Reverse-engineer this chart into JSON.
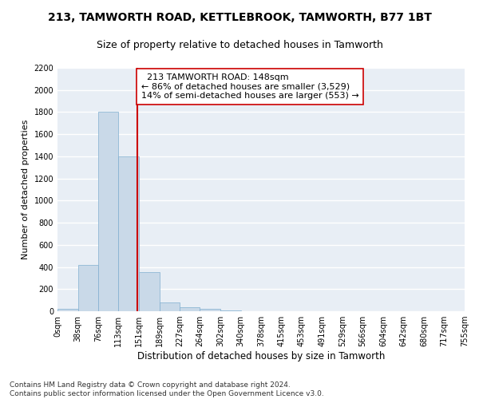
{
  "title1": "213, TAMWORTH ROAD, KETTLEBROOK, TAMWORTH, B77 1BT",
  "title2": "Size of property relative to detached houses in Tamworth",
  "xlabel": "Distribution of detached houses by size in Tamworth",
  "ylabel": "Number of detached properties",
  "bin_edges": [
    0,
    38,
    76,
    113,
    151,
    189,
    227,
    264,
    302,
    340,
    378,
    415,
    453,
    491,
    529,
    566,
    604,
    642,
    680,
    717,
    755
  ],
  "bar_heights": [
    20,
    420,
    1800,
    1400,
    350,
    80,
    35,
    20,
    5,
    0,
    0,
    0,
    0,
    0,
    0,
    0,
    0,
    0,
    0,
    0
  ],
  "bar_color": "#c9d9e8",
  "bar_edgecolor": "#7faecf",
  "vline_x": 148,
  "vline_color": "#cc0000",
  "annotation_text": "  213 TAMWORTH ROAD: 148sqm\n← 86% of detached houses are smaller (3,529)\n14% of semi-detached houses are larger (553) →",
  "annotation_box_color": "white",
  "annotation_box_edgecolor": "#cc0000",
  "ylim": [
    0,
    2200
  ],
  "yticks": [
    0,
    200,
    400,
    600,
    800,
    1000,
    1200,
    1400,
    1600,
    1800,
    2000,
    2200
  ],
  "bg_color": "#e8eef5",
  "grid_color": "white",
  "footer_text": "Contains HM Land Registry data © Crown copyright and database right 2024.\nContains public sector information licensed under the Open Government Licence v3.0.",
  "title1_fontsize": 10,
  "title2_fontsize": 9,
  "xlabel_fontsize": 8.5,
  "ylabel_fontsize": 8,
  "tick_fontsize": 7,
  "annotation_fontsize": 8,
  "footer_fontsize": 6.5
}
